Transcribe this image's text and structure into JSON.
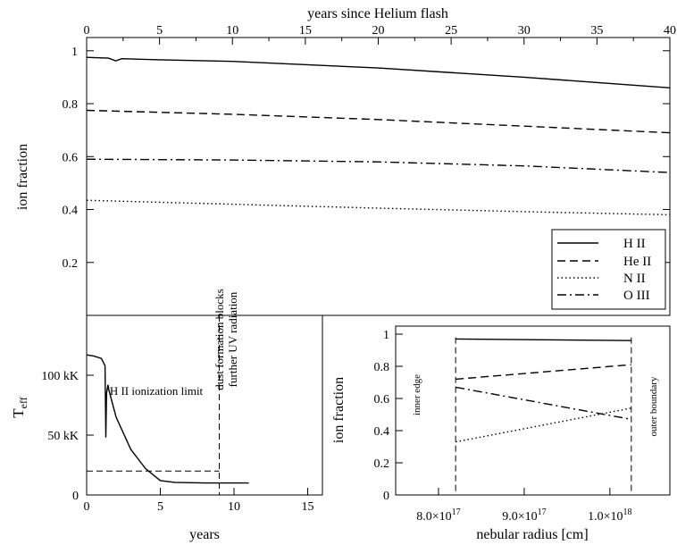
{
  "chart_data": [
    {
      "id": "top",
      "type": "line",
      "title": "",
      "xlabel": "years since Helium flash",
      "ylabel": "ion fraction",
      "xlim": [
        0,
        40
      ],
      "ylim": [
        0,
        1.05
      ],
      "xticks": [
        "0",
        "5",
        "10",
        "15",
        "20",
        "25",
        "30",
        "35",
        "40"
      ],
      "yticks": [
        "0.2",
        "0.4",
        "0.6",
        "0.8",
        "1"
      ],
      "legend_position": "bottom-right",
      "series": [
        {
          "name": "H II",
          "dash": "solid",
          "x": [
            0,
            1.5,
            2,
            2.4,
            5,
            10,
            20,
            30,
            40
          ],
          "y": [
            0.975,
            0.972,
            0.962,
            0.97,
            0.966,
            0.96,
            0.935,
            0.9,
            0.86
          ]
        },
        {
          "name": "He II",
          "dash": "dashed",
          "x": [
            0,
            10,
            20,
            30,
            40
          ],
          "y": [
            0.775,
            0.76,
            0.74,
            0.715,
            0.69
          ]
        },
        {
          "name": "N II",
          "dash": "dotted",
          "x": [
            0,
            10,
            20,
            30,
            40
          ],
          "y": [
            0.435,
            0.42,
            0.405,
            0.392,
            0.38
          ]
        },
        {
          "name": "O III",
          "dash": "dashdot",
          "x": [
            0,
            10,
            20,
            30,
            40
          ],
          "y": [
            0.59,
            0.587,
            0.58,
            0.565,
            0.54
          ]
        }
      ]
    },
    {
      "id": "teff",
      "type": "line",
      "title": "",
      "xlabel": "years",
      "ylabel_main": "T",
      "ylabel_sub": "eff",
      "xlim": [
        0,
        16
      ],
      "ylim": [
        0,
        150
      ],
      "xticks": [
        "0",
        "5",
        "10",
        "15"
      ],
      "yticks": [
        "0",
        "50 kK",
        "100 kK"
      ],
      "series": [
        {
          "name": "",
          "dash": "solid",
          "x": [
            0,
            0.5,
            1,
            1.25,
            1.3,
            1.35,
            1.45,
            1.5,
            2,
            3,
            4,
            5,
            6,
            8,
            11
          ],
          "y": [
            117,
            116,
            114,
            108,
            48,
            85,
            92,
            88,
            65,
            38,
            22,
            12,
            10.5,
            10,
            10
          ]
        }
      ],
      "hline": {
        "y": 20,
        "label": "H II ionization limit"
      },
      "vline": {
        "x": 9,
        "label_lines": [
          "dust formation blocks",
          "further UV radiation"
        ]
      }
    },
    {
      "id": "radius",
      "type": "line",
      "title": "",
      "xlabel": "nebular radius [cm]",
      "ylabel": "ion fraction",
      "xlim": [
        7.5e+17,
        1.07e+18
      ],
      "ylim": [
        0,
        1.05
      ],
      "xticks": [
        {
          "mant": "8.0",
          "exp": "17"
        },
        {
          "mant": "9.0",
          "exp": "17"
        },
        {
          "mant": "1.0",
          "exp": "18"
        }
      ],
      "yticks": [
        "0",
        "0.2",
        "0.4",
        "0.6",
        "0.8",
        "1"
      ],
      "series": [
        {
          "name": "H II",
          "dash": "solid",
          "x": [
            8.2e+17,
            1.025e+18
          ],
          "y": [
            0.97,
            0.96
          ]
        },
        {
          "name": "He II",
          "dash": "dashed",
          "x": [
            8.2e+17,
            1.025e+18
          ],
          "y": [
            0.72,
            0.81
          ]
        },
        {
          "name": "N II",
          "dash": "dotted",
          "x": [
            8.2e+17,
            1.025e+18
          ],
          "y": [
            0.33,
            0.54
          ]
        },
        {
          "name": "O III",
          "dash": "dashdot",
          "x": [
            8.2e+17,
            1.025e+18
          ],
          "y": [
            0.67,
            0.47
          ]
        }
      ],
      "vlines": [
        {
          "x": 8.2e+17,
          "label": "inner edge"
        },
        {
          "x": 1.025e+18,
          "label": "outer boundary"
        }
      ]
    }
  ]
}
